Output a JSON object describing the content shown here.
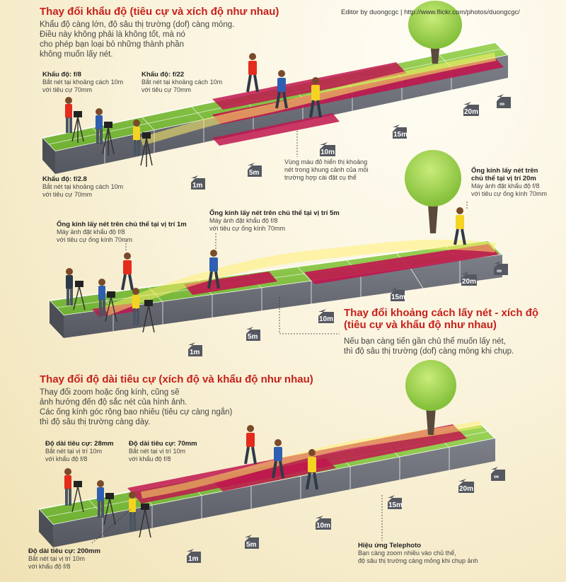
{
  "credit": "Editor by duongcgc | http://www.flickr.com/photos/duongcgc/",
  "panel1": {
    "title": "Thay đổi khẩu độ (tiêu cự và xích độ như nhau)",
    "lines": [
      "Khẩu độ càng lớn, độ sâu thị trường (dof) càng mỏng.",
      "Điều này không phải là không tốt, mà nó",
      "cho phép bạn loại bỏ những thành phần",
      "không muốn lấy nét."
    ],
    "labels": [
      {
        "head": "Khẩu độ: f/8",
        "l1": "Bắt nét tại khoảng cách 10m",
        "l2": "với tiêu cự 70mm"
      },
      {
        "head": "Khẩu độ: f/22",
        "l1": "Bắt nét tại khoảng cách 10m",
        "l2": "với tiêu cự 70mm"
      },
      {
        "head": "Khẩu độ: f/2.8",
        "l1": "Bắt nét tại khoảng cách 10m",
        "l2": "với tiêu cự 70mm"
      }
    ],
    "note": [
      "Vùng màu đỏ hiển thị khoảng",
      "nét trong khung cảnh của mỗi",
      "trường hợp cài đặt cụ thể"
    ]
  },
  "panel2": {
    "title_l1": "Thay đổi khoảng cách lấy nét - xích độ",
    "title_l2": "(tiêu cự và khẩu độ như nhau)",
    "lines": [
      "Nếu bạn càng tiến gần chủ thể muốn lấy nét,",
      "thì độ sâu thị trường (dof) càng mỏng khi chụp."
    ],
    "labels": [
      {
        "head": "Ống kính lấy nét trên chủ thể tại vị trí 1m",
        "l1": "Máy ảnh đặt khẩu độ f/8",
        "l2": "với tiêu cự ống kính 70mm"
      },
      {
        "head": "Ống kính lấy nét trên chủ thể tại vị trí 5m",
        "l1": "Máy ảnh đặt khẩu độ f/8",
        "l2": "với tiêu cự ống kính 70mm"
      },
      {
        "head": "Ống kính lấy nét trên",
        "head2": "chủ thể tại vị trí 20m",
        "l1": "Máy ảnh đặt khẩu độ f/8",
        "l2": "với tiêu cự ống kính 70mm"
      }
    ]
  },
  "panel3": {
    "title": "Thay đổi độ dài tiêu cự (xích độ và khẩu độ như nhau)",
    "lines": [
      "Thay đổi zoom hoặc ống kính, cũng sẽ",
      "ảnh hưởng đến độ sắc nét của hình ảnh.",
      "Các ống kính góc rộng bao nhiêu (tiêu cự càng ngắn)",
      "thì độ sâu thị trường càng dày."
    ],
    "labels": [
      {
        "head": "Độ dài tiêu cự: 28mm",
        "l1": "Bắt nét tại vị trí 10m",
        "l2": "với khẩu độ f/8"
      },
      {
        "head": "Độ dài tiêu cự: 70mm",
        "l1": "Bắt nét tại vị trí 10m",
        "l2": "với khẩu độ f/8"
      },
      {
        "head": "Độ dài tiêu cự: 200mm",
        "l1": "Bắt nét tại vị trí 10m",
        "l2": "với khẩu độ f/8"
      }
    ],
    "tele": {
      "head": "Hiệu ứng Telephoto",
      "l1": "Bạn càng zoom nhiều vào chủ thể,",
      "l2": "độ sâu thị trường càng mỏng khi chụp ảnh"
    }
  },
  "distances": [
    "1m",
    "5m",
    "10m",
    "15m",
    "20m",
    "∞"
  ],
  "colors": {
    "title": "#c6211b",
    "grass": "#7cbf3c",
    "focus": "#c0164e",
    "ridge": "#fff06a",
    "shirt_red": "#e42b1c",
    "shirt_blue": "#2f5fb2",
    "shirt_yellow": "#f5d322"
  }
}
